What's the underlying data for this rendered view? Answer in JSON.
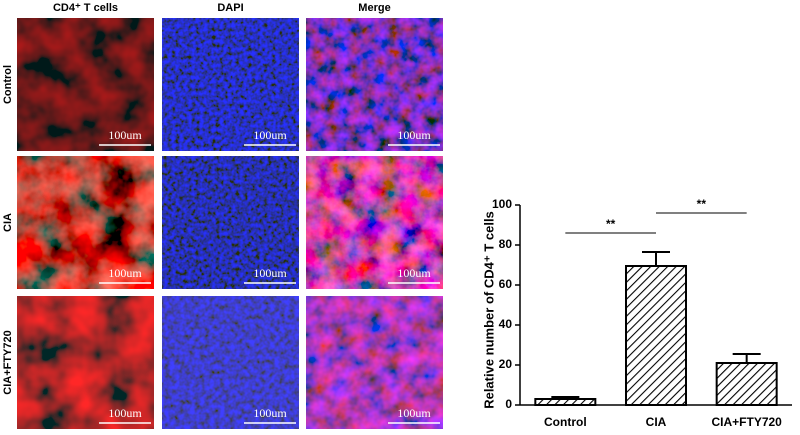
{
  "panels": {
    "columns": [
      "CD4⁺ T cells",
      "DAPI",
      "Merge"
    ],
    "rows": [
      "Control",
      "CIA",
      "CIA+FTY720"
    ],
    "scale_bar": "100um"
  },
  "chart_data": {
    "type": "bar",
    "ylabel": "Relative number of CD4⁺ T cells",
    "categories": [
      "Control",
      "CIA",
      "CIA+FTY720"
    ],
    "values": [
      3,
      69.5,
      21
    ],
    "errors": [
      1,
      7,
      4.5
    ],
    "color": "#000000",
    "ylim": [
      0,
      100
    ],
    "yticks": [
      0,
      20,
      40,
      60,
      80,
      100
    ],
    "annotations": [
      {
        "label": "**",
        "bars": [
          0,
          1
        ]
      },
      {
        "label": "**",
        "bars": [
          1,
          2
        ]
      }
    ]
  }
}
